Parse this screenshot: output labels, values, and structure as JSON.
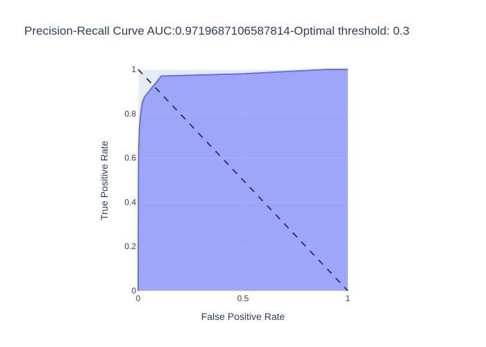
{
  "chart_data": {
    "type": "area",
    "title": "Precision-Recall Curve AUC:0.9719687106587814-Optimal threshold: 0.3",
    "xlabel": "False Positive Rate",
    "ylabel": "True Positive Rate",
    "xlim": [
      0,
      1
    ],
    "ylim": [
      0,
      1
    ],
    "x_ticks": [
      0,
      0.5,
      1
    ],
    "x_tick_labels": [
      "0",
      "0.5",
      "1"
    ],
    "y_ticks": [
      0,
      0.2,
      0.4,
      0.6,
      0.8,
      1
    ],
    "y_tick_labels": [
      "0",
      "0.2",
      "0.4",
      "0.6",
      "0.8",
      "1"
    ],
    "grid": true,
    "series": [
      {
        "style": "area",
        "color": "#636efa",
        "fill_color": "rgba(99,110,250,0.55)",
        "x": [
          0,
          0.001,
          0.002,
          0.004,
          0.006,
          0.01,
          0.015,
          0.02,
          0.03,
          0.11,
          0.5,
          0.9,
          1
        ],
        "y": [
          0,
          0.45,
          0.6,
          0.68,
          0.73,
          0.78,
          0.82,
          0.85,
          0.875,
          0.97,
          0.98,
          1.0,
          1.0
        ]
      },
      {
        "style": "line",
        "dash": "dash",
        "color": "#2a3f5f",
        "x": [
          0,
          1
        ],
        "y": [
          1,
          0
        ]
      }
    ]
  },
  "colors": {
    "plot_background": "#e5ecf6",
    "grid": "#ffffff",
    "text": "#2a3f5f"
  }
}
